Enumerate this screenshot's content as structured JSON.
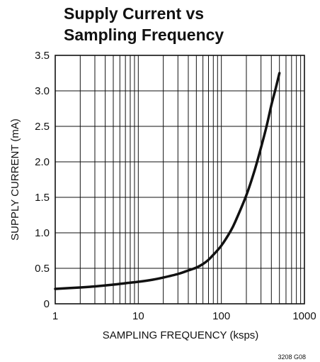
{
  "chart_data": {
    "type": "line",
    "title": "Supply Current vs",
    "subtitle": "Sampling Frequency",
    "xlabel": "SAMPLING FREQUENCY (ksps)",
    "ylabel": "SUPPLY CURRENT (mA)",
    "figure_id": "3208 G08",
    "x_scale": "log",
    "xlim": [
      1,
      1000
    ],
    "ylim": [
      0,
      3.5
    ],
    "x_ticks": [
      {
        "value": 1,
        "label": "1"
      },
      {
        "value": 10,
        "label": "10"
      },
      {
        "value": 100,
        "label": "100"
      },
      {
        "value": 1000,
        "label": "1000"
      }
    ],
    "y_ticks": [
      {
        "value": 0,
        "label": "0"
      },
      {
        "value": 0.5,
        "label": "0.5"
      },
      {
        "value": 1.0,
        "label": "1.0"
      },
      {
        "value": 1.5,
        "label": "1.5"
      },
      {
        "value": 2.0,
        "label": "2.0"
      },
      {
        "value": 2.5,
        "label": "2.5"
      },
      {
        "value": 3.0,
        "label": "3.0"
      },
      {
        "value": 3.5,
        "label": "3.5"
      }
    ],
    "grid": true,
    "series": [
      {
        "color": "#111111",
        "x": [
          1,
          2,
          3,
          5,
          7,
          10,
          15,
          20,
          30,
          40,
          50,
          60,
          70,
          80,
          100,
          130,
          150,
          200,
          250,
          300,
          350,
          400,
          450,
          500
        ],
        "y": [
          0.21,
          0.23,
          0.245,
          0.27,
          0.29,
          0.31,
          0.34,
          0.37,
          0.42,
          0.47,
          0.51,
          0.56,
          0.62,
          0.69,
          0.82,
          1.03,
          1.18,
          1.53,
          1.87,
          2.2,
          2.5,
          2.8,
          3.03,
          3.25
        ]
      }
    ]
  }
}
